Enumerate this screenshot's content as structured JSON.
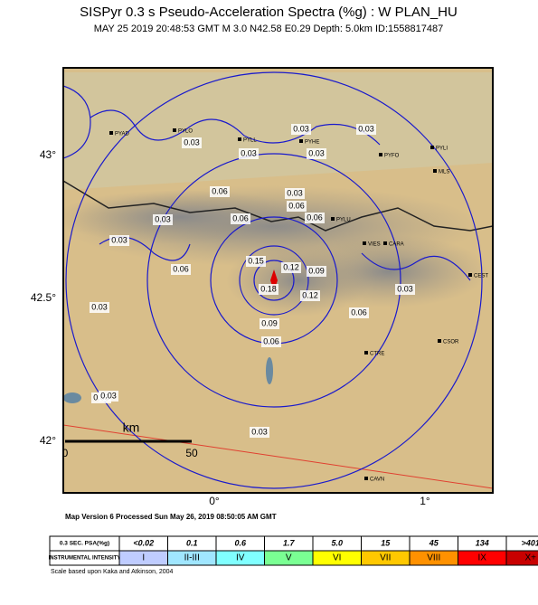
{
  "header": {
    "title": "SISPyr 0.3 s Pseudo-Acceleration Spectra (%g) : W PLAN_HU",
    "subtitle": "MAY 25 2019 20:48:53  GMT   M 3.0   N42.58 E0.29   Depth: 5.0km   ID:1558817487"
  },
  "map": {
    "lat_labels": [
      "43°",
      "42.5°",
      "42°"
    ],
    "lon_labels": [
      "0°",
      "1°"
    ],
    "scale_bar": {
      "unit": "km",
      "start": "0",
      "end": "50"
    },
    "contour_labels": [
      "0.03",
      "0.03",
      "0.03",
      "0.03",
      "0.03",
      "0.03",
      "0.03",
      "0.06",
      "0.06",
      "0.06",
      "0.06",
      "0.03",
      "0.03",
      "0.06",
      "0.15",
      "0.12",
      "0.09",
      "0.12",
      "0.18",
      "0.09",
      "0.06",
      "0.06",
      "0.03",
      "0.03",
      "0.03",
      "0.03"
    ],
    "stations": [
      "PYAD",
      "PYLO",
      "PYLL",
      "PYHE",
      "PYFO",
      "PYLI",
      "MLS",
      "PYLU",
      "VIES",
      "CARA",
      "CEST",
      "CSOR",
      "CTRE",
      "CAVN"
    ]
  },
  "footer": {
    "version": "Map Version 6 Processed Sun May 26, 2019 08:50:05 AM GMT"
  },
  "legend": {
    "row1_title": "0.3 SEC. PSA(%g)",
    "row1": [
      "<0.02",
      "0.1",
      "0.6",
      "1.7",
      "5.0",
      "15",
      "45",
      "134",
      ">401"
    ],
    "row2_title": "INSTRUMENTAL INTENSITY",
    "row2": [
      "I",
      "II-III",
      "IV",
      "V",
      "VI",
      "VII",
      "VIII",
      "IX",
      "X+"
    ],
    "colors": [
      "#ffffff",
      "#bfccff",
      "#a0e6ff",
      "#80ffff",
      "#7aff93",
      "#ffff00",
      "#ffc800",
      "#ff9100",
      "#ff0000",
      "#c80000"
    ],
    "note": "Scale based upon Kaka and Atkinson, 2004"
  }
}
